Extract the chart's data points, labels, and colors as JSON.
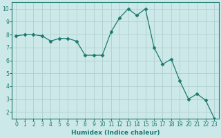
{
  "x": [
    0,
    1,
    2,
    3,
    4,
    5,
    6,
    7,
    8,
    9,
    10,
    11,
    12,
    13,
    14,
    15,
    16,
    17,
    18,
    19,
    20,
    21,
    22,
    23
  ],
  "y": [
    7.9,
    8.0,
    8.0,
    7.9,
    7.5,
    7.7,
    7.7,
    7.5,
    6.4,
    6.4,
    6.4,
    8.2,
    9.3,
    10.0,
    9.5,
    10.0,
    7.0,
    5.7,
    6.1,
    4.4,
    3.0,
    3.4,
    2.9,
    1.5
  ],
  "line_color": "#1a7a6e",
  "marker": "D",
  "marker_size": 2.5,
  "background_color": "#cde8e8",
  "grid_color": "#afd0d0",
  "grid_minor_color": "#c4dfdf",
  "xlabel": "Humidex (Indice chaleur)",
  "xlim": [
    -0.5,
    23.5
  ],
  "ylim": [
    1.5,
    10.5
  ],
  "yticks": [
    2,
    3,
    4,
    5,
    6,
    7,
    8,
    9,
    10
  ],
  "xticks": [
    0,
    1,
    2,
    3,
    4,
    5,
    6,
    7,
    8,
    9,
    10,
    11,
    12,
    13,
    14,
    15,
    16,
    17,
    18,
    19,
    20,
    21,
    22,
    23
  ]
}
